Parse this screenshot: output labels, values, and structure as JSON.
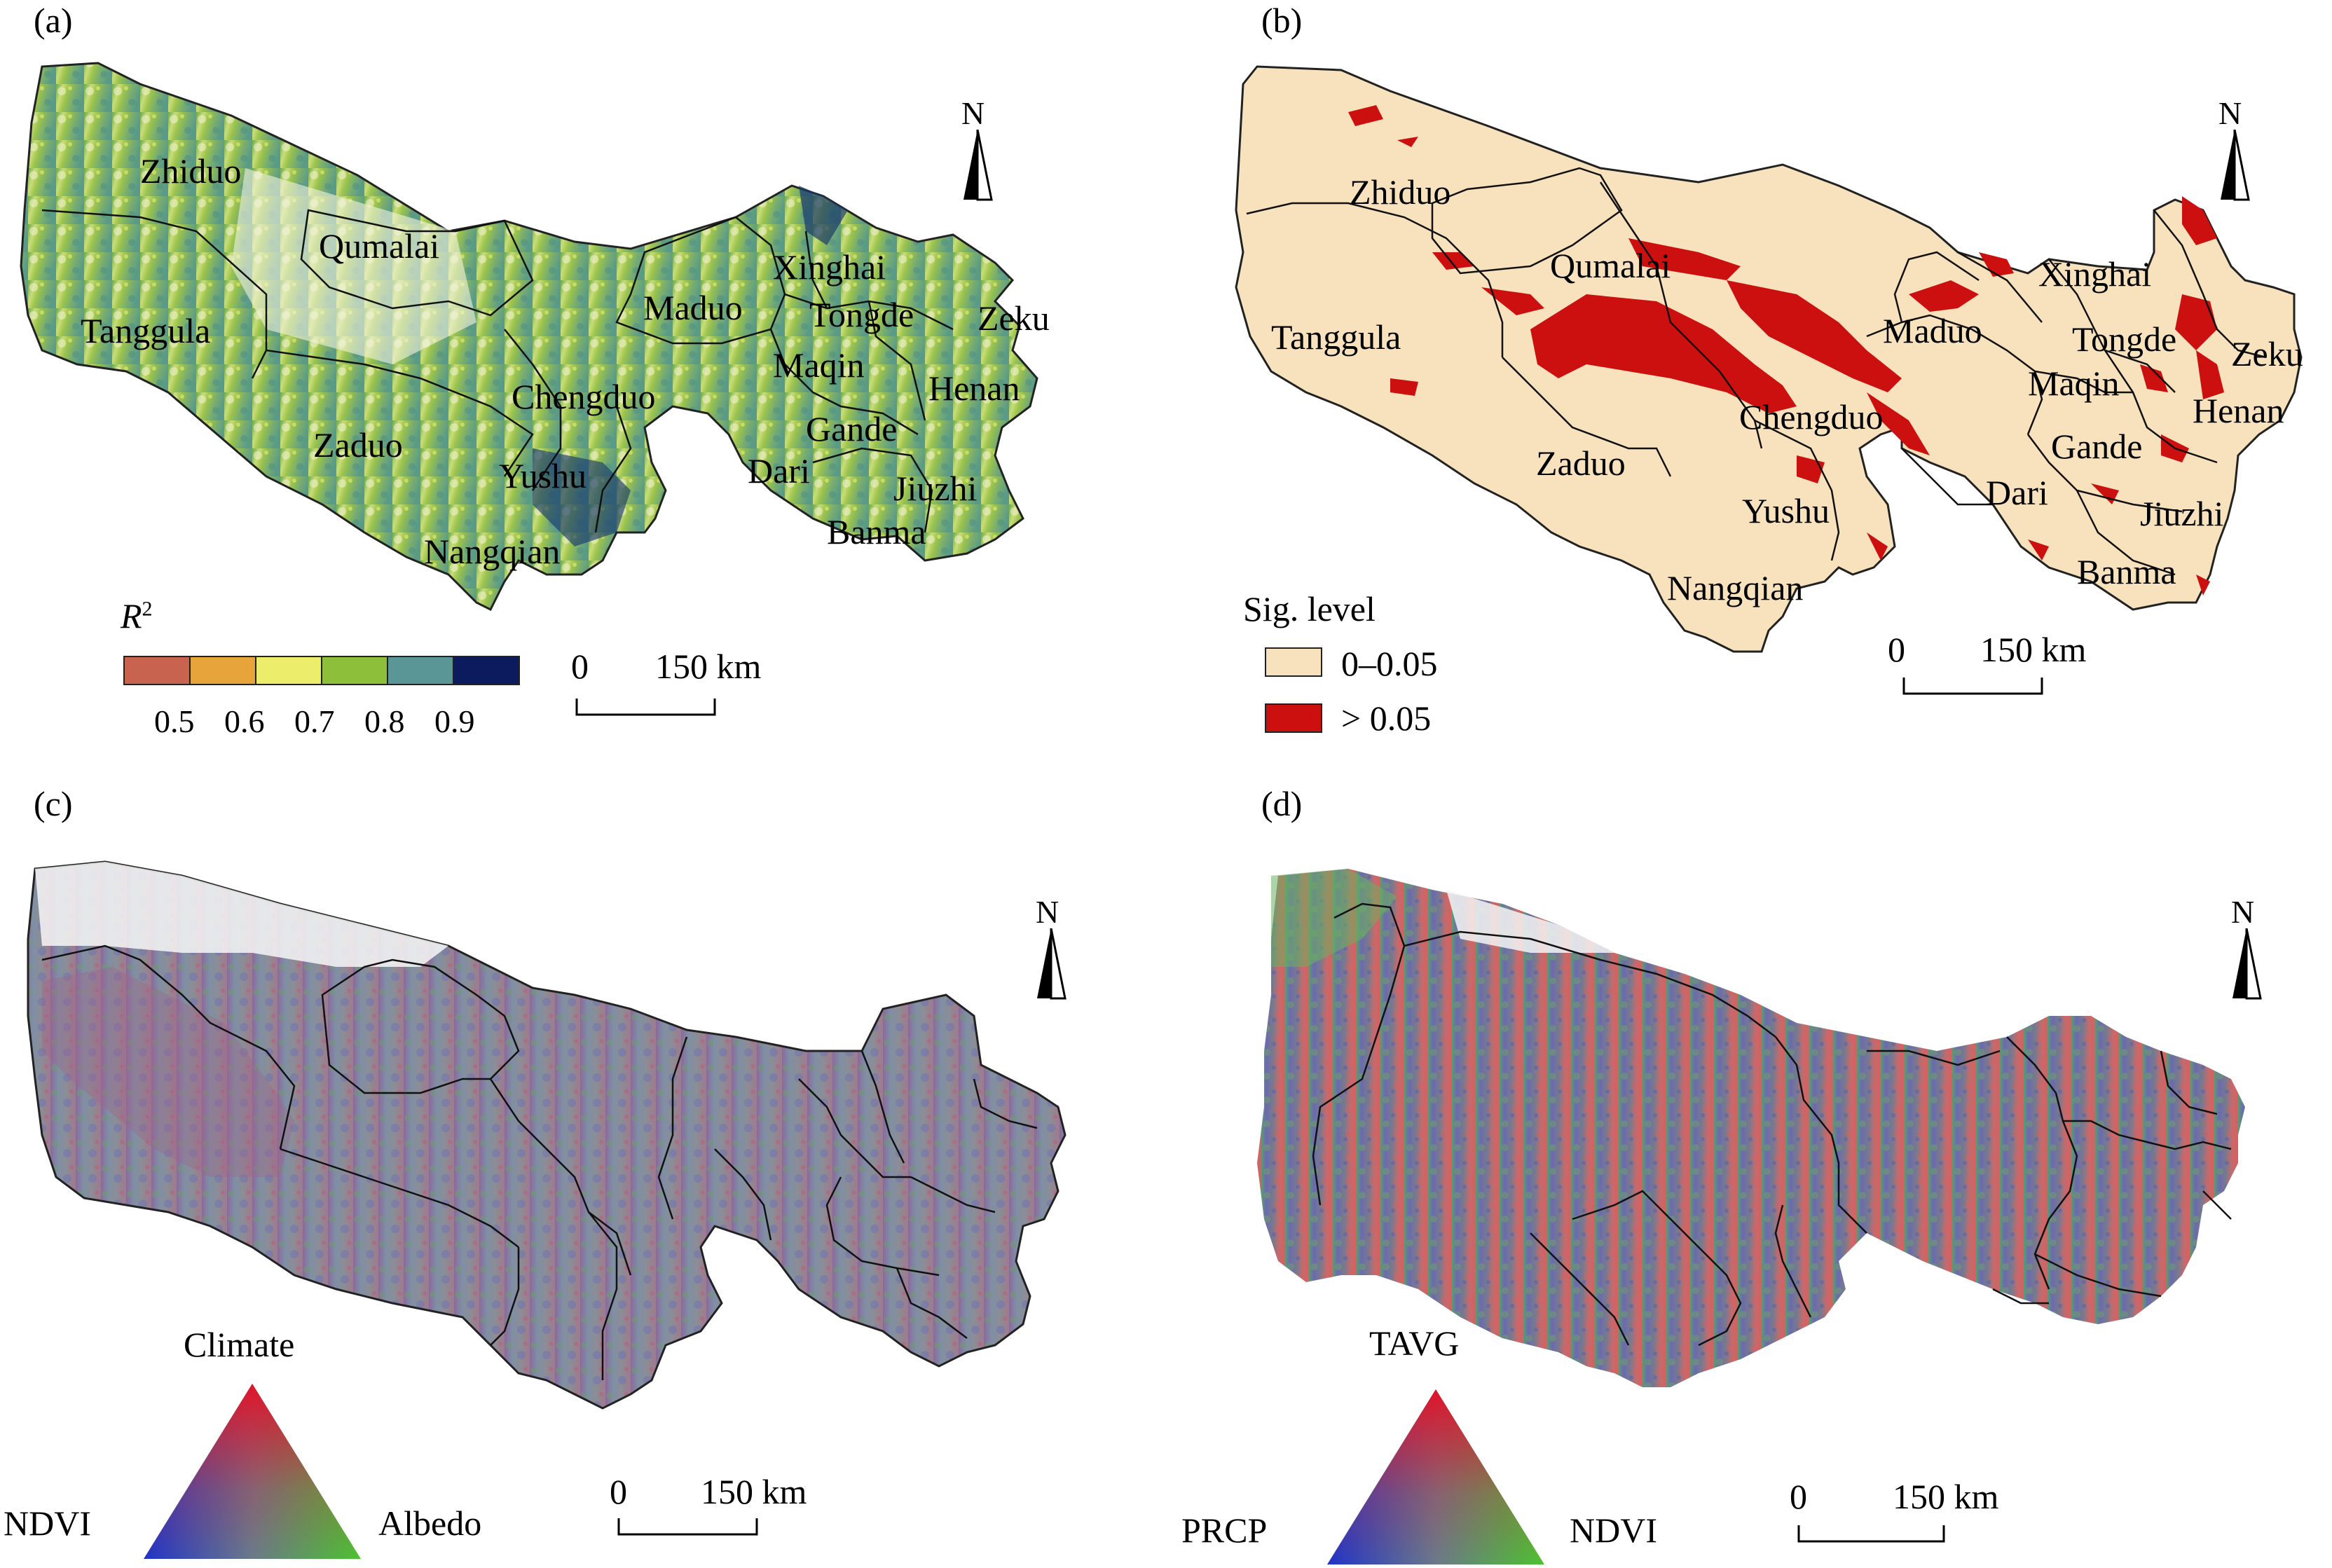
{
  "panels": [
    {
      "label": "(a)"
    },
    {
      "label": "(b)"
    },
    {
      "label": "(c)"
    },
    {
      "label": "(d)"
    }
  ],
  "counties": {
    "zhiduo": "Zhiduo",
    "qumalai": "Qumalai",
    "tanggula": "Tanggula",
    "maduo": "Maduo",
    "xinghai": "Xinghai",
    "tongde": "Tongde",
    "zeku": "Zeku",
    "maqin": "Maqin",
    "henan": "Henan",
    "chengduo": "Chengduo",
    "zaduo": "Zaduo",
    "gande": "Gande",
    "yushu": "Yushu",
    "dari": "Dari",
    "jiuzhi": "Jiuzhi",
    "nangqian": "Nangqian",
    "banma": "Banma"
  },
  "north_label": "N",
  "scale_bar": {
    "zero": "0",
    "distance": "150 km"
  },
  "legend_a": {
    "title": "R",
    "title_superscript": "2",
    "ticks": [
      "0.5",
      "0.6",
      "0.7",
      "0.8",
      "0.9"
    ],
    "colors": [
      "#c7634e",
      "#e7a43a",
      "#eced6a",
      "#8dbf3b",
      "#5b9697",
      "#0b1b5e"
    ]
  },
  "legend_b": {
    "title": "Sig. level",
    "items": [
      {
        "label": "0–0.05",
        "color": "#f7e2bd"
      },
      {
        "label": "> 0.05",
        "color": "#cc0f0f"
      }
    ]
  },
  "triangle_c": {
    "top": "Climate",
    "left": "NDVI",
    "right": "Albedo"
  },
  "triangle_d": {
    "top": "TAVG",
    "left": "PRCP",
    "right": "NDVI"
  }
}
